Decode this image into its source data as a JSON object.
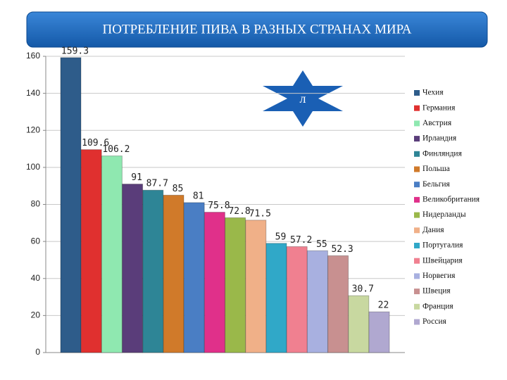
{
  "chart_data": {
    "type": "bar",
    "title": "ПОТРЕБЛЕНИЕ ПИВА В РАЗНЫХ СТРАНАХ МИРА",
    "annotation": "л",
    "categories": [
      null
    ],
    "series": [
      {
        "name": "Чехия",
        "color": "#2e5c8a",
        "values": [
          159.3
        ]
      },
      {
        "name": "Германия",
        "color": "#e0302f",
        "values": [
          109.6
        ]
      },
      {
        "name": "Австрия",
        "color": "#8fe8b0",
        "values": [
          106.2
        ]
      },
      {
        "name": "Ирландия",
        "color": "#5a3d7a",
        "values": [
          91
        ]
      },
      {
        "name": "Финляндия",
        "color": "#2e8596",
        "values": [
          87.7
        ]
      },
      {
        "name": "Польша",
        "color": "#d07a2a",
        "values": [
          85
        ]
      },
      {
        "name": "Бельгия",
        "color": "#4a7ec4",
        "values": [
          81
        ]
      },
      {
        "name": "Великобритания",
        "color": "#e0308a",
        "values": [
          75.8
        ]
      },
      {
        "name": "Нидерланды",
        "color": "#9ab84a",
        "values": [
          72.8
        ]
      },
      {
        "name": "Дания",
        "color": "#f0b088",
        "values": [
          71.5
        ]
      },
      {
        "name": "Португалия",
        "color": "#30a8c8",
        "values": [
          59
        ]
      },
      {
        "name": "Швейцария",
        "color": "#f08090",
        "values": [
          57.2
        ]
      },
      {
        "name": "Норвегия",
        "color": "#a8b0e0",
        "values": [
          55
        ]
      },
      {
        "name": "Швеция",
        "color": "#c89090",
        "values": [
          52.3
        ]
      },
      {
        "name": "Франция",
        "color": "#c8d8a0",
        "values": [
          30.7
        ]
      },
      {
        "name": "Россия",
        "color": "#b0a8d0",
        "values": [
          22
        ]
      }
    ],
    "ylim": [
      0,
      160
    ],
    "yticks": [
      0,
      20,
      40,
      60,
      80,
      100,
      120,
      140,
      160
    ],
    "grid": true,
    "legend": "right"
  }
}
